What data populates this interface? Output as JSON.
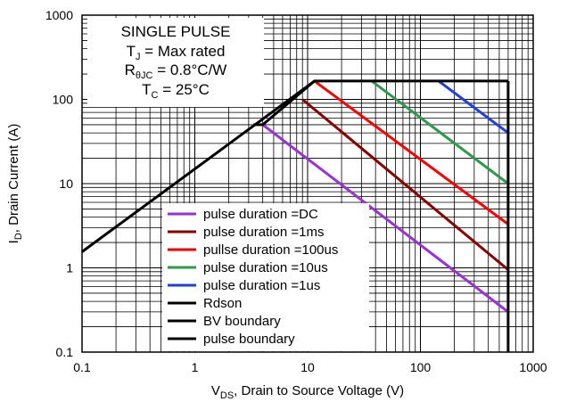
{
  "chart_data": {
    "type": "line",
    "title": "",
    "xlabel_main": "V",
    "xlabel_sub": "DS",
    "xlabel_rest": ", Drain to Source Voltage (V)",
    "ylabel_main": "I",
    "ylabel_sub": "D",
    "ylabel_rest": ", Drain Current (A)",
    "x_scale": "log",
    "y_scale": "log",
    "xlim": [
      0.1,
      1000
    ],
    "ylim": [
      0.1,
      1000
    ],
    "grid": true,
    "x_ticks": [
      {
        "v": 0.1,
        "label": "0.1"
      },
      {
        "v": 1,
        "label": "1"
      },
      {
        "v": 10,
        "label": "10"
      },
      {
        "v": 100,
        "label": "100"
      },
      {
        "v": 1000,
        "label": "1000"
      }
    ],
    "y_ticks": [
      {
        "v": 0.1,
        "label": "0.1"
      },
      {
        "v": 1,
        "label": "1"
      },
      {
        "v": 10,
        "label": "10"
      },
      {
        "v": 100,
        "label": "100"
      },
      {
        "v": 1000,
        "label": "1000"
      }
    ],
    "conditions": {
      "line1": "SINGLE PULSE",
      "line2_main": "T",
      "line2_sub": "J",
      "line2_rest": " = Max rated",
      "line3_main": "R",
      "line3_sub": "θJC",
      "line3_rest": " = 0.8°C/W",
      "line4_main": "T",
      "line4_sub": "C",
      "line4_rest": " = 25°C"
    },
    "legend_position": "bottom-center",
    "series": [
      {
        "name": "pulse duration =DC",
        "color": "#9b30d9",
        "points": [
          [
            4.0,
            50
          ],
          [
            600,
            0.3
          ]
        ]
      },
      {
        "name": "pulse duration =1ms",
        "color": "#8b0000",
        "points": [
          [
            9.0,
            100
          ],
          [
            600,
            0.95
          ]
        ]
      },
      {
        "name": "pullse duration =100us",
        "color": "#ff0000",
        "points": [
          [
            11.5,
            165
          ],
          [
            600,
            3.3
          ]
        ]
      },
      {
        "name": "pulse duration =10us",
        "color": "#2e9a4a",
        "points": [
          [
            37,
            165
          ],
          [
            600,
            10
          ]
        ]
      },
      {
        "name": "pulse duration =1us",
        "color": "#1f3fe0",
        "points": [
          [
            145,
            165
          ],
          [
            600,
            40
          ]
        ]
      },
      {
        "name": "Rdson",
        "color": "#000000",
        "points": [
          [
            0.1,
            1.55
          ],
          [
            11.5,
            165
          ]
        ]
      },
      {
        "name": "BV boundary",
        "color": "#000000",
        "points": [
          [
            600,
            165
          ],
          [
            600,
            0.1
          ]
        ]
      },
      {
        "name": "pulse boundary",
        "color": "#000000",
        "points": [
          [
            3.3,
            50
          ],
          [
            4.0,
            50
          ],
          [
            11.5,
            165
          ],
          [
            600,
            165
          ]
        ]
      }
    ]
  }
}
